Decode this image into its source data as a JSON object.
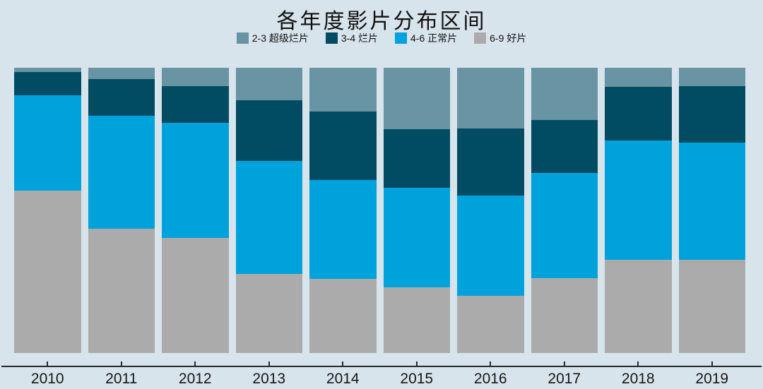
{
  "page": {
    "background_color": "#d8e4ec",
    "axis_color": "#26282a",
    "text_color": "#111111"
  },
  "chart_data": {
    "type": "bar",
    "variant": "stacked-percent",
    "title": "各年度影片分布区间",
    "xlabel": "",
    "ylabel": "",
    "ylim": [
      0,
      100
    ],
    "grid": false,
    "legend_position": "top",
    "stack_order": "top-to-bottom",
    "categories": [
      "2010",
      "2011",
      "2012",
      "2013",
      "2014",
      "2015",
      "2016",
      "2017",
      "2018",
      "2019"
    ],
    "series": [
      {
        "name": "2-3 超级烂片",
        "color": "#6894a4",
        "values": [
          1.6,
          3.9,
          6.4,
          11.5,
          15.3,
          21.6,
          21.2,
          18.3,
          6.8,
          6.5
        ]
      },
      {
        "name": "3-4 烂片",
        "color": "#014c63",
        "values": [
          8.1,
          12.9,
          13.0,
          21.1,
          24.1,
          20.6,
          23.7,
          18.7,
          18.7,
          19.8
        ]
      },
      {
        "name": "4-6 正常片",
        "color": "#00a2dc",
        "values": [
          33.4,
          39.6,
          40.2,
          39.6,
          34.5,
          34.9,
          35.1,
          36.8,
          41.9,
          41.1
        ]
      },
      {
        "name": "6-9 好片",
        "color": "#ababab",
        "values": [
          56.9,
          43.6,
          40.4,
          27.8,
          26.1,
          22.9,
          20.0,
          26.2,
          32.6,
          32.6
        ]
      }
    ]
  }
}
